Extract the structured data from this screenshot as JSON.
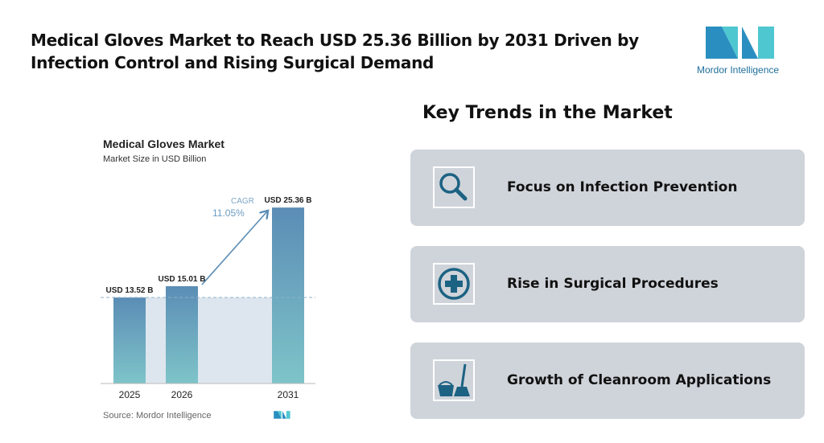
{
  "header": {
    "title": "Medical Gloves Market to Reach USD 25.36 Billion by 2031 Driven by Infection Control and Rising Surgical Demand",
    "logo_text": "Mordor Intelligence"
  },
  "chart_data": {
    "type": "bar",
    "title": "Medical Gloves Market",
    "subtitle": "Market Size in USD Billion",
    "categories": [
      "2025",
      "2026",
      "2031"
    ],
    "values": [
      13.52,
      15.01,
      25.36
    ],
    "data_labels": [
      "USD 13.52 B",
      "USD 15.01 B",
      "USD 25.36 B"
    ],
    "cagr_label": "CAGR",
    "cagr_value": "11.05%",
    "source": "Source: Mordor Intelligence",
    "colors": {
      "bar_top": "#5b8db5",
      "bar_bottom": "#7ec4c9",
      "shade": "#dde6ee",
      "arrow": "#5b8db5"
    }
  },
  "trends": {
    "title": "Key Trends in the Market",
    "items": [
      {
        "label": "Focus on Infection Prevention",
        "icon": "magnifier-icon"
      },
      {
        "label": "Rise in Surgical Procedures",
        "icon": "medical-cross-icon"
      },
      {
        "label": "Growth of Cleanroom Applications",
        "icon": "bucket-mop-icon"
      }
    ],
    "icon_color": "#1c6283",
    "card_color": "#cfd4da"
  }
}
